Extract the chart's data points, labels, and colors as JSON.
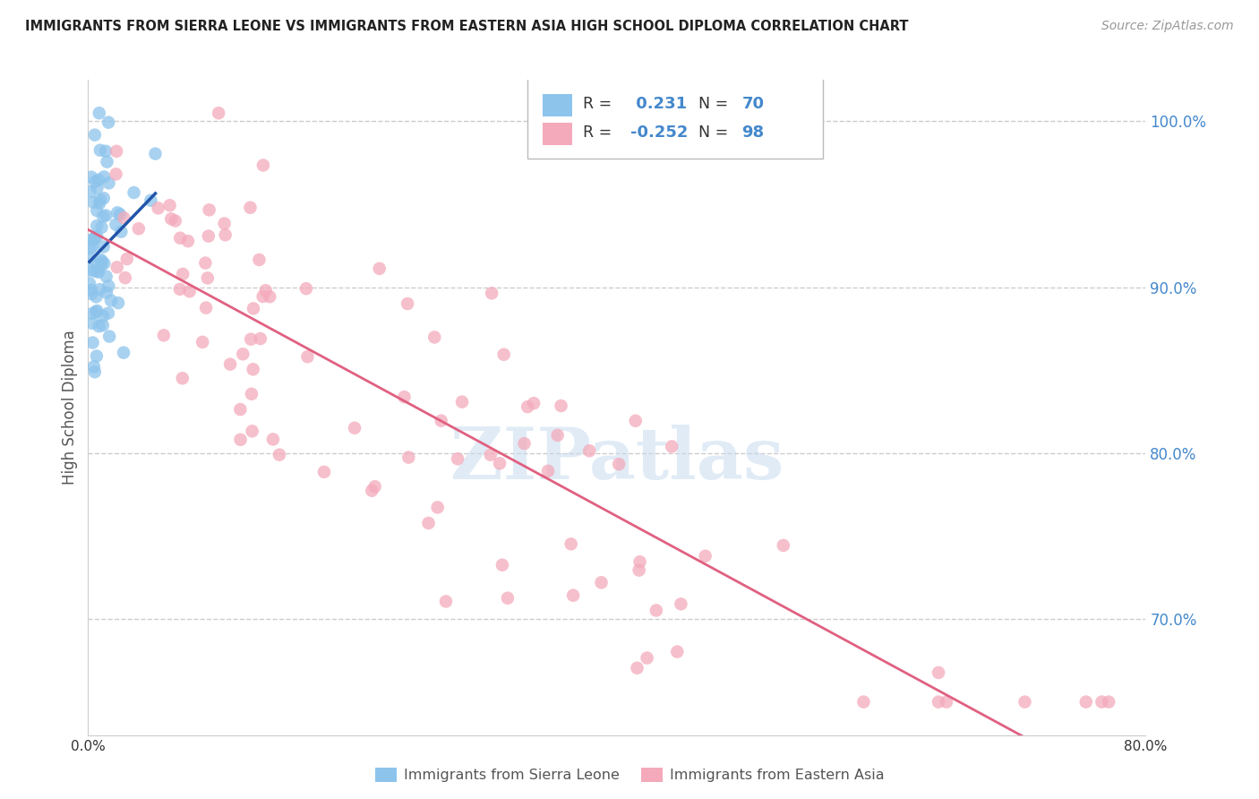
{
  "title": "IMMIGRANTS FROM SIERRA LEONE VS IMMIGRANTS FROM EASTERN ASIA HIGH SCHOOL DIPLOMA CORRELATION CHART",
  "source": "Source: ZipAtlas.com",
  "ylabel": "High School Diploma",
  "watermark": "ZIPatlas",
  "blue_label": "Immigrants from Sierra Leone",
  "pink_label": "Immigrants from Eastern Asia",
  "blue_R": 0.231,
  "blue_N": 70,
  "pink_R": -0.252,
  "pink_N": 98,
  "xlim": [
    0.0,
    0.8
  ],
  "ylim": [
    0.63,
    1.025
  ],
  "yticks": [
    0.7,
    0.8,
    0.9,
    1.0
  ],
  "ytick_labels": [
    "70.0%",
    "80.0%",
    "90.0%",
    "100.0%"
  ],
  "xtick_labels_show": [
    "0.0%",
    "80.0%"
  ],
  "blue_color": "#8DC4EC",
  "pink_color": "#F4AABB",
  "blue_line_color": "#2255AA",
  "pink_line_color": "#E06080",
  "grid_color": "#CCCCCC",
  "title_color": "#222222",
  "source_color": "#999999",
  "axis_color": "#CCCCCC",
  "tick_color": "#4488CC",
  "legend_R_color": "#4488CC",
  "legend_N_color": "#4488CC"
}
